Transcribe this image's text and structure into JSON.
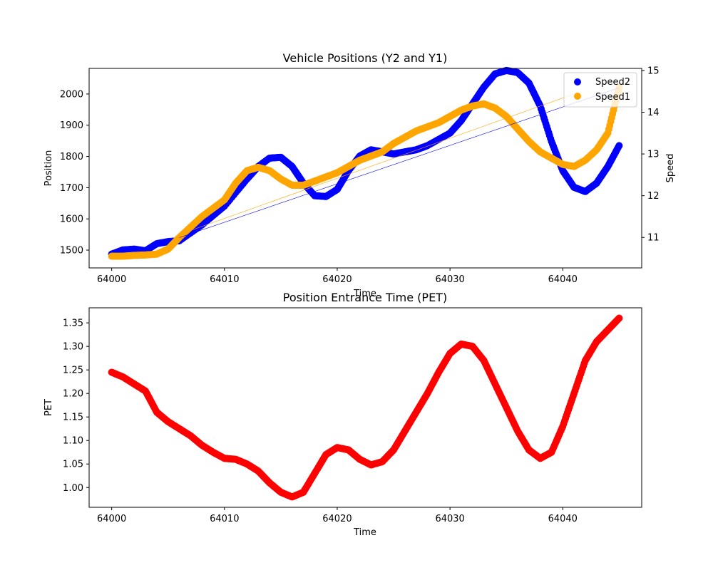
{
  "chart_data": [
    {
      "type": "scatter",
      "title": "Vehicle Positions (Y2 and Y1)",
      "xlabel": "Time",
      "ylabel": "Position",
      "ylabel_right": "Speed",
      "xlim": [
        63998,
        64047
      ],
      "ylim": [
        1443,
        2082
      ],
      "ylim_right": [
        10.27,
        15.05
      ],
      "xticks": [
        64000,
        64010,
        64020,
        64030,
        64040
      ],
      "yticks": [
        1500,
        1600,
        1700,
        1800,
        1900,
        2000
      ],
      "yticks_right": [
        11,
        12,
        13,
        14,
        15
      ],
      "legend_position": "top-right",
      "series": [
        {
          "name": "Speed2",
          "color": "#0000ff",
          "axis": "right",
          "points": [
            [
              64000,
              10.6
            ],
            [
              64001,
              10.7
            ],
            [
              64002,
              10.72
            ],
            [
              64003,
              10.68
            ],
            [
              64004,
              10.85
            ],
            [
              64005,
              10.9
            ],
            [
              64006,
              10.92
            ],
            [
              64008,
              11.3
            ],
            [
              64010,
              11.75
            ],
            [
              64012,
              12.4
            ],
            [
              64013,
              12.7
            ],
            [
              64014,
              12.9
            ],
            [
              64015,
              12.92
            ],
            [
              64016,
              12.7
            ],
            [
              64017,
              12.3
            ],
            [
              64018,
              12.0
            ],
            [
              64019,
              11.98
            ],
            [
              64020,
              12.15
            ],
            [
              64021,
              12.6
            ],
            [
              64022,
              12.95
            ],
            [
              64023,
              13.1
            ],
            [
              64024,
              13.05
            ],
            [
              64025,
              13.0
            ],
            [
              64026,
              13.05
            ],
            [
              64027,
              13.1
            ],
            [
              64028,
              13.2
            ],
            [
              64030,
              13.5
            ],
            [
              64031,
              13.8
            ],
            [
              64032,
              14.2
            ],
            [
              64033,
              14.6
            ],
            [
              64034,
              14.92
            ],
            [
              64035,
              15.0
            ],
            [
              64036,
              14.95
            ],
            [
              64037,
              14.7
            ],
            [
              64038,
              14.15
            ],
            [
              64039,
              13.3
            ],
            [
              64040,
              12.6
            ],
            [
              64041,
              12.2
            ],
            [
              64042,
              12.1
            ],
            [
              64043,
              12.3
            ],
            [
              64044,
              12.7
            ],
            [
              64045,
              13.2
            ]
          ]
        },
        {
          "name": "Speed1",
          "color": "#ffa500",
          "axis": "right",
          "points": [
            [
              64000,
              10.55
            ],
            [
              64001,
              10.55
            ],
            [
              64002,
              10.57
            ],
            [
              64003,
              10.58
            ],
            [
              64004,
              10.6
            ],
            [
              64005,
              10.72
            ],
            [
              64006,
              11.0
            ],
            [
              64008,
              11.5
            ],
            [
              64010,
              11.9
            ],
            [
              64011,
              12.3
            ],
            [
              64012,
              12.6
            ],
            [
              64013,
              12.68
            ],
            [
              64014,
              12.6
            ],
            [
              64015,
              12.4
            ],
            [
              64016,
              12.25
            ],
            [
              64017,
              12.25
            ],
            [
              64018,
              12.35
            ],
            [
              64019,
              12.45
            ],
            [
              64020,
              12.55
            ],
            [
              64021,
              12.7
            ],
            [
              64022,
              12.85
            ],
            [
              64023,
              12.95
            ],
            [
              64024,
              13.05
            ],
            [
              64025,
              13.25
            ],
            [
              64026,
              13.4
            ],
            [
              64027,
              13.55
            ],
            [
              64028,
              13.65
            ],
            [
              64029,
              13.75
            ],
            [
              64030,
              13.9
            ],
            [
              64031,
              14.05
            ],
            [
              64032,
              14.15
            ],
            [
              64033,
              14.2
            ],
            [
              64034,
              14.1
            ],
            [
              64035,
              13.9
            ],
            [
              64036,
              13.6
            ],
            [
              64037,
              13.3
            ],
            [
              64038,
              13.05
            ],
            [
              64039,
              12.9
            ],
            [
              64040,
              12.75
            ],
            [
              64041,
              12.7
            ],
            [
              64042,
              12.85
            ],
            [
              64043,
              13.1
            ],
            [
              64044,
              13.5
            ],
            [
              64045,
              14.6
            ]
          ]
        },
        {
          "color": "#0000ff",
          "axis": "left",
          "style": "thin-line",
          "points": [
            [
              64006,
              1540
            ],
            [
              64045,
              2020
            ]
          ]
        },
        {
          "color": "#ffa500",
          "axis": "left",
          "style": "thin-line",
          "points": [
            [
              64006,
              1550
            ],
            [
              64041,
              2000
            ]
          ]
        }
      ]
    },
    {
      "type": "scatter",
      "title": "Position Entrance Time (PET)",
      "xlabel": "Time",
      "ylabel": "PET",
      "xlim": [
        63998,
        64047
      ],
      "ylim": [
        0.958,
        1.382
      ],
      "xticks": [
        64000,
        64010,
        64020,
        64030,
        64040
      ],
      "yticks": [
        1.0,
        1.05,
        1.1,
        1.15,
        1.2,
        1.25,
        1.3,
        1.35
      ],
      "series": [
        {
          "color": "#ff0000",
          "points": [
            [
              64000,
              1.245
            ],
            [
              64001,
              1.235
            ],
            [
              64002,
              1.22
            ],
            [
              64003,
              1.205
            ],
            [
              64004,
              1.16
            ],
            [
              64005,
              1.14
            ],
            [
              64006,
              1.125
            ],
            [
              64007,
              1.11
            ],
            [
              64008,
              1.09
            ],
            [
              64009,
              1.075
            ],
            [
              64010,
              1.062
            ],
            [
              64011,
              1.06
            ],
            [
              64012,
              1.05
            ],
            [
              64013,
              1.035
            ],
            [
              64014,
              1.01
            ],
            [
              64015,
              0.99
            ],
            [
              64016,
              0.98
            ],
            [
              64017,
              0.99
            ],
            [
              64018,
              1.03
            ],
            [
              64019,
              1.07
            ],
            [
              64020,
              1.085
            ],
            [
              64021,
              1.08
            ],
            [
              64022,
              1.06
            ],
            [
              64023,
              1.048
            ],
            [
              64024,
              1.055
            ],
            [
              64025,
              1.08
            ],
            [
              64026,
              1.12
            ],
            [
              64027,
              1.16
            ],
            [
              64028,
              1.2
            ],
            [
              64029,
              1.245
            ],
            [
              64030,
              1.285
            ],
            [
              64031,
              1.305
            ],
            [
              64032,
              1.3
            ],
            [
              64033,
              1.27
            ],
            [
              64034,
              1.22
            ],
            [
              64035,
              1.17
            ],
            [
              64036,
              1.12
            ],
            [
              64037,
              1.08
            ],
            [
              64038,
              1.062
            ],
            [
              64039,
              1.075
            ],
            [
              64040,
              1.13
            ],
            [
              64041,
              1.2
            ],
            [
              64042,
              1.27
            ],
            [
              64043,
              1.31
            ],
            [
              64044,
              1.335
            ],
            [
              64045,
              1.36
            ]
          ]
        }
      ]
    }
  ]
}
